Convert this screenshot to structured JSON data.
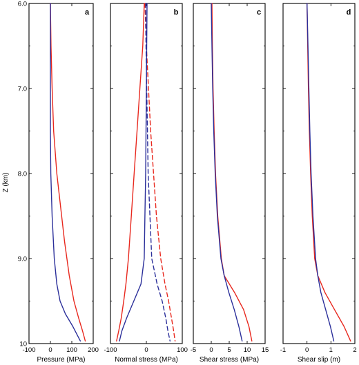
{
  "colors": {
    "red": "#e8281e",
    "blue": "#2b2f9a"
  },
  "ylabel": "Z (km)",
  "chart_data": [
    {
      "type": "line",
      "panel": "a",
      "xlabel": "Pressure (MPa)",
      "xlim": [
        -100,
        200
      ],
      "xticks": [
        -100,
        0,
        100,
        200
      ],
      "ylim": [
        6.0,
        10.0
      ],
      "y_inverted": true,
      "yticks": [
        6.0,
        7.0,
        8.0,
        9.0,
        10
      ],
      "ytick_labels": [
        "6.0",
        "7.0",
        "8.0",
        "9.0",
        "10"
      ],
      "series": [
        {
          "color": "red",
          "style": "solid",
          "x": [
            0,
            3,
            8,
            15,
            30,
            48,
            66,
            88,
            110,
            132,
            150,
            163
          ],
          "y": [
            6.0,
            6.5,
            7.0,
            7.5,
            8.0,
            8.4,
            8.8,
            9.2,
            9.5,
            9.7,
            9.85,
            9.97
          ]
        },
        {
          "color": "blue",
          "style": "solid",
          "x": [
            0,
            0,
            0,
            0,
            2,
            8,
            18,
            30,
            45,
            70,
            105,
            140
          ],
          "y": [
            6.0,
            6.5,
            7.0,
            7.5,
            8.0,
            8.5,
            9.0,
            9.3,
            9.5,
            9.65,
            9.8,
            9.97
          ]
        }
      ]
    },
    {
      "type": "line",
      "panel": "b",
      "xlabel": "Normal stress (MPa)",
      "xlim": [
        -100,
        100
      ],
      "xticks": [
        -100,
        0,
        100
      ],
      "ylim": [
        6.0,
        10.0
      ],
      "y_inverted": true,
      "series": [
        {
          "color": "red",
          "style": "solid",
          "x": [
            -6,
            -10,
            -18,
            -26,
            -34,
            -42,
            -50,
            -57,
            -63,
            -70,
            -77,
            -83
          ],
          "y": [
            6.0,
            6.5,
            7.0,
            7.5,
            8.0,
            8.5,
            9.0,
            9.3,
            9.5,
            9.7,
            9.85,
            9.97
          ]
        },
        {
          "color": "red",
          "style": "dashed",
          "x": [
            -4,
            0,
            6,
            12,
            20,
            28,
            40,
            52,
            62,
            70,
            76,
            80
          ],
          "y": [
            6.0,
            6.5,
            7.0,
            7.5,
            8.0,
            8.5,
            9.0,
            9.3,
            9.5,
            9.7,
            9.85,
            9.97
          ]
        },
        {
          "color": "blue",
          "style": "solid",
          "x": [
            2,
            1,
            0,
            -1,
            -2,
            -4,
            -6,
            -15,
            -35,
            -55,
            -68,
            -75
          ],
          "y": [
            6.0,
            6.5,
            7.0,
            7.5,
            8.0,
            8.5,
            9.0,
            9.3,
            9.5,
            9.7,
            9.85,
            9.97
          ]
        },
        {
          "color": "blue",
          "style": "dashed",
          "x": [
            -2,
            -1,
            1,
            3,
            5,
            10,
            15,
            30,
            44,
            54,
            60,
            66
          ],
          "y": [
            6.0,
            6.5,
            7.0,
            7.5,
            8.0,
            8.5,
            9.0,
            9.3,
            9.5,
            9.7,
            9.85,
            9.97
          ]
        }
      ]
    },
    {
      "type": "line",
      "panel": "c",
      "xlabel": "Shear stress (MPa)",
      "xlim": [
        -5,
        15
      ],
      "xticks": [
        -5,
        0,
        5,
        10,
        15
      ],
      "ylim": [
        6.0,
        10.0
      ],
      "y_inverted": true,
      "series": [
        {
          "color": "red",
          "style": "solid",
          "x": [
            0.2,
            0.3,
            0.5,
            0.8,
            1.2,
            1.8,
            2.8,
            3.6,
            6.5,
            9.0,
            10.5,
            11.3
          ],
          "y": [
            6.0,
            6.5,
            7.0,
            7.5,
            8.0,
            8.5,
            9.0,
            9.2,
            9.4,
            9.6,
            9.8,
            9.97
          ]
        },
        {
          "color": "blue",
          "style": "solid",
          "x": [
            0.0,
            0.2,
            0.4,
            0.7,
            1.1,
            1.7,
            2.7,
            3.6,
            4.9,
            6.4,
            7.7,
            8.6
          ],
          "y": [
            6.0,
            6.5,
            7.0,
            7.5,
            8.0,
            8.5,
            9.0,
            9.2,
            9.4,
            9.6,
            9.8,
            9.97
          ]
        }
      ]
    },
    {
      "type": "line",
      "panel": "d",
      "xlabel": "Shear slip (m)",
      "xlim": [
        -1,
        2
      ],
      "xticks": [
        -1,
        0,
        1,
        2
      ],
      "ylim": [
        6.0,
        10.0
      ],
      "y_inverted": true,
      "series": [
        {
          "color": "red",
          "style": "solid",
          "x": [
            0.0,
            0.03,
            0.06,
            0.1,
            0.15,
            0.22,
            0.32,
            0.45,
            0.75,
            1.15,
            1.55,
            1.82
          ],
          "y": [
            6.0,
            6.5,
            7.0,
            7.5,
            8.0,
            8.5,
            9.0,
            9.2,
            9.4,
            9.6,
            9.8,
            9.97
          ]
        },
        {
          "color": "blue",
          "style": "solid",
          "x": [
            0.0,
            0.04,
            0.08,
            0.12,
            0.17,
            0.25,
            0.36,
            0.45,
            0.58,
            0.78,
            0.98,
            1.12
          ],
          "y": [
            6.0,
            6.5,
            7.0,
            7.5,
            8.0,
            8.5,
            9.0,
            9.2,
            9.4,
            9.6,
            9.8,
            9.97
          ]
        }
      ]
    }
  ]
}
